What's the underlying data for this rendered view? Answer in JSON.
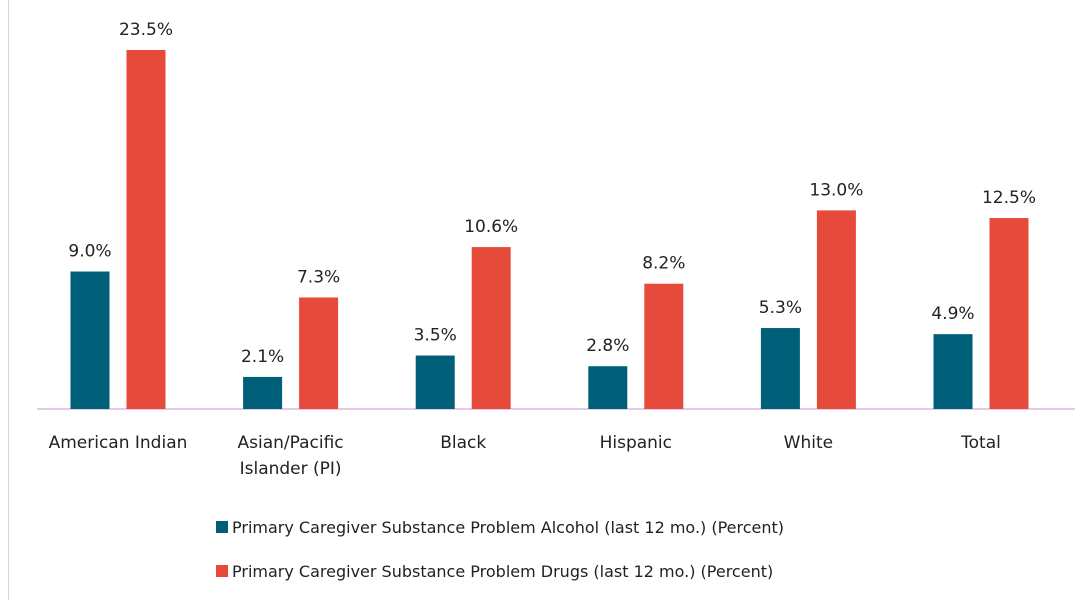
{
  "chart_data": {
    "type": "bar",
    "categories": [
      [
        "American Indian"
      ],
      [
        "Asian/Pacific",
        "Islander (PI)"
      ],
      [
        "Black"
      ],
      [
        "Hispanic"
      ],
      [
        "White"
      ],
      [
        "Total"
      ]
    ],
    "series": [
      {
        "name": "Primary Caregiver Substance Problem Alcohol (last 12 mo.) (Percent)",
        "values": [
          9.0,
          2.1,
          3.5,
          2.8,
          5.3,
          4.9
        ],
        "labels": [
          "9.0%",
          "2.1%",
          "3.5%",
          "2.8%",
          "5.3%",
          "4.9%"
        ],
        "color": "#005f78"
      },
      {
        "name": "Primary Caregiver Substance Problem Drugs (last 12 mo.) (Percent)",
        "values": [
          23.5,
          7.3,
          10.6,
          8.2,
          13.0,
          12.5
        ],
        "labels": [
          "23.5%",
          "7.3%",
          "10.6%",
          "8.2%",
          "13.0%",
          "12.5%"
        ],
        "color": "#e64a3a"
      }
    ],
    "ylim": [
      0,
      26
    ],
    "grid": false,
    "legend_position": "bottom",
    "axis_color": "#d8b8e0"
  }
}
